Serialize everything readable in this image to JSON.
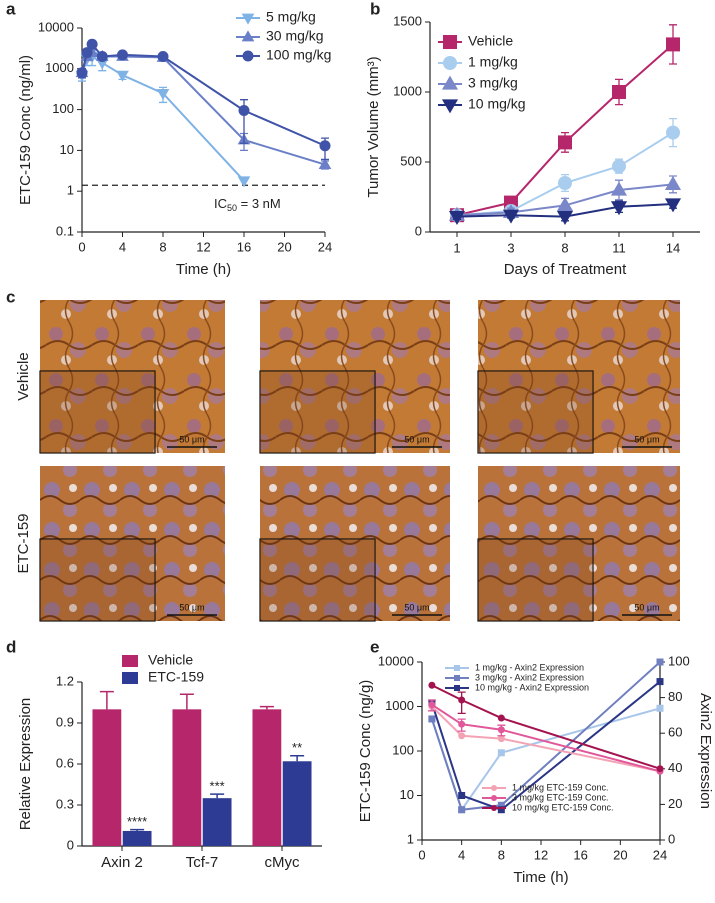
{
  "chart_data": [
    {
      "panel": "a",
      "type": "line",
      "ylog": true,
      "xlabel": "Time (h)",
      "ylabel": "ETC-159 Conc (ng/ml)",
      "x": [
        0,
        0.5,
        1,
        2,
        4,
        8,
        16,
        24
      ],
      "xlim": [
        0,
        24
      ],
      "xticks": [
        0,
        4,
        8,
        12,
        16,
        20,
        24
      ],
      "ylim": [
        0.1,
        10000
      ],
      "yticks": [
        0.1,
        1,
        10,
        100,
        1000,
        10000
      ],
      "legend": "upper right",
      "reference_line": 1.4,
      "annotation": {
        "text": "IC",
        "subscript": "50",
        "suffix": " = 3 nM"
      },
      "series": [
        {
          "name": "5 mg/kg",
          "color": "#7fb2e5",
          "marker": "triangle-down",
          "values": [
            700,
            1800,
            2000,
            1400,
            700,
            250,
            1.8,
            null
          ],
          "errors": [
            200,
            600,
            800,
            500,
            150,
            100,
            null,
            null
          ]
        },
        {
          "name": "30 mg/kg",
          "color": "#6a7fc8",
          "marker": "triangle-up",
          "values": [
            800,
            2000,
            2500,
            2000,
            2000,
            1900,
            18,
            4.5
          ],
          "errors": [
            200,
            400,
            500,
            300,
            300,
            200,
            8,
            1
          ]
        },
        {
          "name": "100 mg/kg",
          "color": "#3f53a8",
          "marker": "circle",
          "values": [
            800,
            2500,
            4000,
            2000,
            2200,
            2000,
            95,
            13
          ],
          "errors": [
            200,
            500,
            800,
            300,
            300,
            200,
            80,
            7
          ]
        }
      ]
    },
    {
      "panel": "b",
      "type": "line",
      "xlabel": "Days of Treatment",
      "ylabel": "Tumor Volume (mm³)",
      "categories": [
        "1",
        "3",
        "8",
        "11",
        "14"
      ],
      "ylim": [
        0,
        1500
      ],
      "yticks": [
        0,
        500,
        1000,
        1500
      ],
      "legend": "upper left",
      "series": [
        {
          "name": "Vehicle",
          "color": "#b5266b",
          "marker": "square",
          "values": [
            120,
            210,
            640,
            1000,
            1340
          ],
          "errors": [
            20,
            20,
            70,
            90,
            140
          ]
        },
        {
          "name": "1 mg/kg",
          "color": "#a9cdee",
          "marker": "circle",
          "values": [
            120,
            150,
            350,
            470,
            710
          ],
          "errors": [
            20,
            20,
            60,
            50,
            100
          ]
        },
        {
          "name": "3 mg/kg",
          "color": "#7a87c8",
          "marker": "triangle-up",
          "values": [
            120,
            140,
            190,
            300,
            340
          ],
          "errors": [
            20,
            30,
            50,
            70,
            60
          ]
        },
        {
          "name": "10 mg/kg",
          "color": "#232f7f",
          "marker": "triangle-down",
          "values": [
            110,
            120,
            110,
            180,
            200
          ],
          "errors": [
            20,
            20,
            30,
            40,
            30
          ]
        }
      ]
    },
    {
      "panel": "d",
      "type": "bar",
      "ylabel": "Relative Expression",
      "categories": [
        "Axin 2",
        "Tcf-7",
        "cMyc"
      ],
      "ylim": [
        0,
        1.2
      ],
      "yticks": [
        0,
        0.3,
        0.6,
        0.9,
        1.2
      ],
      "legend": "upper left",
      "series": [
        {
          "name": "Vehicle",
          "color": "#b5266b",
          "values": [
            1,
            1,
            1
          ],
          "errors": [
            0.13,
            0.11,
            0.02
          ]
        },
        {
          "name": "ETC-159",
          "color": "#2e3b94",
          "values": [
            0.11,
            0.35,
            0.62
          ],
          "errors": [
            0.01,
            0.03,
            0.04
          ],
          "significance": [
            "****",
            "***",
            "**"
          ]
        }
      ]
    },
    {
      "panel": "e",
      "type": "line",
      "ylog": true,
      "xlabel": "Time (h)",
      "ylabel": "ETC-159 Conc (ng/g)",
      "y2label": "Axin2 Expression",
      "x": [
        1,
        4,
        8,
        24
      ],
      "xlim": [
        0,
        24
      ],
      "xticks": [
        0,
        4,
        8,
        12,
        16,
        20,
        24
      ],
      "ylim": [
        1,
        10000
      ],
      "yticks": [
        1,
        10,
        100,
        1000,
        10000
      ],
      "y2lim": [
        0,
        100
      ],
      "y2ticks": [
        0,
        20,
        40,
        60,
        80,
        100
      ],
      "series": [
        {
          "name": "1 mg/kg - Axin2 Expression",
          "axis": "y2",
          "color": "#a8c6ea",
          "marker": "square",
          "values": [
            68,
            17,
            49,
            74
          ]
        },
        {
          "name": "3 mg/kg - Axin2 Expression",
          "axis": "y2",
          "color": "#6f7fc0",
          "marker": "square",
          "values": [
            68,
            17,
            19.5,
            100
          ]
        },
        {
          "name": "10 mg/kg - Axin2 Expression",
          "axis": "y2",
          "color": "#2b3585",
          "marker": "square",
          "values": [
            77,
            25,
            17,
            89
          ]
        },
        {
          "name": "1 mg/kg ETC-159 Conc.",
          "color": "#f4a3b5",
          "marker": "circle",
          "values": [
            1000,
            220,
            190,
            35
          ]
        },
        {
          "name": "3 mg/kg ETC-159 Conc.",
          "color": "#e0579a",
          "marker": "circle",
          "values": [
            1100,
            400,
            300,
            35
          ],
          "errors": [
            300,
            120,
            80,
            null
          ]
        },
        {
          "name": "10 mg/kg ETC-159 Conc.",
          "color": "#a3134f",
          "marker": "circle",
          "values": [
            3000,
            1400,
            550,
            40
          ],
          "errors": [
            null,
            700,
            null,
            null
          ]
        }
      ]
    }
  ],
  "images": {
    "panel": "c",
    "rows": [
      {
        "label": "Vehicle",
        "scale_labels": [
          "50 μm",
          "50 μm",
          "50 μm"
        ]
      },
      {
        "label": "ETC-159",
        "scale_labels": [
          "50 μm",
          "50 μm",
          "50 μm"
        ]
      }
    ]
  }
}
